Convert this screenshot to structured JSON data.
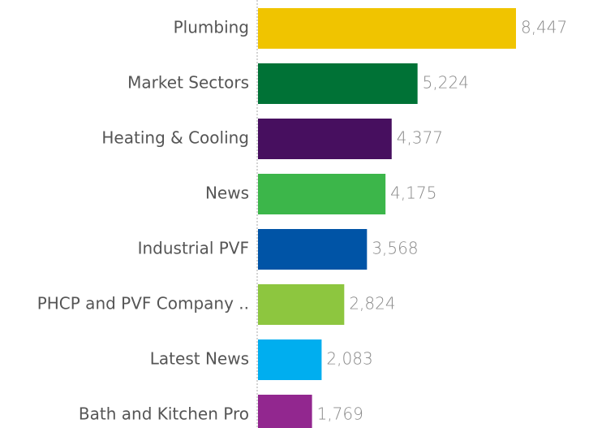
{
  "chart_data": {
    "type": "bar",
    "orientation": "horizontal",
    "categories": [
      "Plumbing",
      "Market Sectors",
      "Heating & Cooling",
      "News",
      "Industrial PVF",
      "PHCP and PVF Company ..",
      "Latest News",
      "Bath and Kitchen Pro"
    ],
    "values": [
      8447,
      5224,
      4377,
      4175,
      3568,
      2824,
      2083,
      1769
    ],
    "value_labels": [
      "8,447",
      "5,224",
      "4,377",
      "4,175",
      "3,568",
      "2,824",
      "2,083",
      "1,769"
    ],
    "colors": [
      "#f0c400",
      "#007236",
      "#470f5f",
      "#3cb64a",
      "#0054a6",
      "#8dc63f",
      "#00aeef",
      "#92278f"
    ]
  }
}
